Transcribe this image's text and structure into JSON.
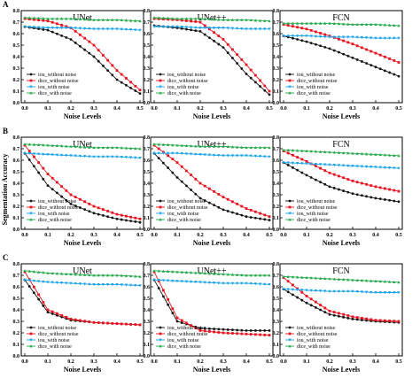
{
  "ylabel": "Segmentation Accuracy",
  "xlabel": "Noise Levels",
  "colors": {
    "iou_without_noise": "#111111",
    "dice_without_noise": "#e8131f",
    "iou_with_noise": "#1aa3e8",
    "dice_with_noise": "#24a84a"
  },
  "chart_data": [
    {
      "panel": "A",
      "charts": [
        {
          "type": "line",
          "title": "UNet",
          "x": [
            0,
            0.1,
            0.2,
            0.3,
            0.4,
            0.5
          ],
          "xticks": [
            "0.0",
            "0.1",
            "0.2",
            "0.3",
            "0.4",
            "0.5"
          ],
          "yticks": [
            "0.0",
            "0.1",
            "0.2",
            "0.3",
            "0.4",
            "0.5",
            "0.6",
            "0.7",
            "0.8"
          ],
          "ylim": [
            0,
            0.8
          ],
          "series": [
            {
              "name": "iou_without noise",
              "values": [
                0.66,
                0.63,
                0.55,
                0.4,
                0.2,
                0.08
              ]
            },
            {
              "name": "dice_without noise",
              "values": [
                0.73,
                0.71,
                0.65,
                0.5,
                0.28,
                0.11
              ]
            },
            {
              "name": "iou_with noise",
              "values": [
                0.66,
                0.65,
                0.65,
                0.64,
                0.64,
                0.63
              ]
            },
            {
              "name": "dice_with noise",
              "values": [
                0.74,
                0.73,
                0.73,
                0.72,
                0.72,
                0.71
              ]
            }
          ]
        },
        {
          "type": "line",
          "title": "UNet++",
          "x": [
            0,
            0.1,
            0.2,
            0.3,
            0.4,
            0.5
          ],
          "xticks": [
            "0.0",
            "0.1",
            "0.2",
            "0.3",
            "0.4",
            "0.5"
          ],
          "yticks": [
            "0.0",
            "0.1",
            "0.2",
            "0.3",
            "0.4",
            "0.5",
            "0.6",
            "0.7",
            "0.8"
          ],
          "ylim": [
            0,
            0.8
          ],
          "series": [
            {
              "name": "iou_without noise",
              "values": [
                0.67,
                0.65,
                0.62,
                0.48,
                0.25,
                0.07
              ]
            },
            {
              "name": "dice_without noise",
              "values": [
                0.73,
                0.72,
                0.7,
                0.55,
                0.33,
                0.1
              ]
            },
            {
              "name": "iou_with noise",
              "values": [
                0.66,
                0.66,
                0.65,
                0.65,
                0.64,
                0.64
              ]
            },
            {
              "name": "dice_with noise",
              "values": [
                0.74,
                0.73,
                0.73,
                0.72,
                0.72,
                0.71
              ]
            }
          ]
        },
        {
          "type": "line",
          "title": "FCN",
          "x": [
            0,
            0.1,
            0.2,
            0.3,
            0.4,
            0.5
          ],
          "xticks": [
            "0.0",
            "0.1",
            "0.2",
            "0.3",
            "0.4",
            "0.5"
          ],
          "yticks": [
            "0.0",
            "0.1",
            "0.2",
            "0.3",
            "0.4",
            "0.5",
            "0.6",
            "0.7",
            "0.8"
          ],
          "ylim": [
            0,
            0.8
          ],
          "series": [
            {
              "name": "iou_without noise",
              "values": [
                0.58,
                0.53,
                0.47,
                0.39,
                0.31,
                0.23
              ]
            },
            {
              "name": "dice_without noise",
              "values": [
                0.68,
                0.64,
                0.58,
                0.51,
                0.43,
                0.35
              ]
            },
            {
              "name": "iou_with noise",
              "values": [
                0.58,
                0.58,
                0.57,
                0.57,
                0.56,
                0.56
              ]
            },
            {
              "name": "dice_with noise",
              "values": [
                0.69,
                0.69,
                0.69,
                0.68,
                0.68,
                0.67
              ]
            }
          ]
        }
      ]
    },
    {
      "panel": "B",
      "charts": [
        {
          "type": "line",
          "title": "UNet",
          "x": [
            0,
            0.1,
            0.2,
            0.3,
            0.4,
            0.5
          ],
          "xticks": [
            "0.0",
            "0.1",
            "0.2",
            "0.3",
            "0.4",
            "0.5"
          ],
          "yticks": [
            "0.0",
            "0.1",
            "0.2",
            "0.3",
            "0.4",
            "0.5",
            "0.6",
            "0.7",
            "0.8"
          ],
          "ylim": [
            0,
            0.8
          ],
          "series": [
            {
              "name": "iou_without noise",
              "values": [
                0.66,
                0.38,
                0.22,
                0.14,
                0.09,
                0.06
              ]
            },
            {
              "name": "dice_without noise",
              "values": [
                0.73,
                0.48,
                0.3,
                0.2,
                0.13,
                0.09
              ]
            },
            {
              "name": "iou_with noise",
              "values": [
                0.66,
                0.65,
                0.64,
                0.63,
                0.63,
                0.62
              ]
            },
            {
              "name": "dice_with noise",
              "values": [
                0.74,
                0.73,
                0.72,
                0.71,
                0.71,
                0.7
              ]
            }
          ]
        },
        {
          "type": "line",
          "title": "UNet++",
          "x": [
            0,
            0.1,
            0.2,
            0.3,
            0.4,
            0.5
          ],
          "xticks": [
            "0.0",
            "0.1",
            "0.2",
            "0.3",
            "0.4",
            "0.5"
          ],
          "yticks": [
            "0.0",
            "0.1",
            "0.2",
            "0.3",
            "0.4",
            "0.5",
            "0.6",
            "0.7",
            "0.8"
          ],
          "ylim": [
            0,
            0.8
          ],
          "series": [
            {
              "name": "iou_without noise",
              "values": [
                0.66,
                0.45,
                0.27,
                0.17,
                0.11,
                0.08
              ]
            },
            {
              "name": "dice_without noise",
              "values": [
                0.73,
                0.58,
                0.4,
                0.28,
                0.18,
                0.11
              ]
            },
            {
              "name": "iou_with noise",
              "values": [
                0.66,
                0.66,
                0.65,
                0.64,
                0.64,
                0.63
              ]
            },
            {
              "name": "dice_with noise",
              "values": [
                0.74,
                0.73,
                0.72,
                0.72,
                0.71,
                0.71
              ]
            }
          ]
        },
        {
          "type": "line",
          "title": "FCN",
          "x": [
            0,
            0.1,
            0.2,
            0.3,
            0.4,
            0.5
          ],
          "xticks": [
            "0.0",
            "0.1",
            "0.2",
            "0.3",
            "0.4",
            "0.5"
          ],
          "yticks": [
            "0.0",
            "0.1",
            "0.2",
            "0.3",
            "0.4",
            "0.5",
            "0.6",
            "0.7",
            "0.8"
          ],
          "ylim": [
            0,
            0.8
          ],
          "series": [
            {
              "name": "iou_without noise",
              "values": [
                0.58,
                0.47,
                0.37,
                0.31,
                0.27,
                0.24
              ]
            },
            {
              "name": "dice_without noise",
              "values": [
                0.68,
                0.59,
                0.49,
                0.42,
                0.37,
                0.33
              ]
            },
            {
              "name": "iou_with noise",
              "values": [
                0.58,
                0.57,
                0.56,
                0.55,
                0.54,
                0.53
              ]
            },
            {
              "name": "dice_with noise",
              "values": [
                0.69,
                0.68,
                0.67,
                0.66,
                0.65,
                0.64
              ]
            }
          ]
        }
      ]
    },
    {
      "panel": "C",
      "charts": [
        {
          "type": "line",
          "title": "UNet",
          "x": [
            0,
            0.1,
            0.2,
            0.3,
            0.4,
            0.5
          ],
          "xticks": [
            "0.0",
            "0.1",
            "0.2",
            "0.3",
            "0.4",
            "0.5"
          ],
          "yticks": [
            "0.0",
            "0.1",
            "0.2",
            "0.3",
            "0.4",
            "0.5",
            "0.6",
            "0.7",
            "0.8"
          ],
          "ylim": [
            0,
            0.8
          ],
          "series": [
            {
              "name": "iou_without noise",
              "values": [
                0.66,
                0.38,
                0.31,
                0.29,
                0.28,
                0.27
              ]
            },
            {
              "name": "dice_without noise",
              "values": [
                0.73,
                0.4,
                0.32,
                0.29,
                0.28,
                0.27
              ]
            },
            {
              "name": "iou_with noise",
              "values": [
                0.66,
                0.64,
                0.63,
                0.62,
                0.62,
                0.61
              ]
            },
            {
              "name": "dice_with noise",
              "values": [
                0.74,
                0.72,
                0.71,
                0.7,
                0.7,
                0.69
              ]
            }
          ]
        },
        {
          "type": "line",
          "title": "UNet++",
          "x": [
            0,
            0.1,
            0.2,
            0.3,
            0.4,
            0.5
          ],
          "xticks": [
            "0.0",
            "0.1",
            "0.2",
            "0.3",
            "0.4",
            "0.5"
          ],
          "yticks": [
            "0.0",
            "0.1",
            "0.2",
            "0.3",
            "0.4",
            "0.5",
            "0.6",
            "0.7",
            "0.8"
          ],
          "ylim": [
            0,
            0.8
          ],
          "series": [
            {
              "name": "iou_without noise",
              "values": [
                0.66,
                0.3,
                0.24,
                0.23,
                0.22,
                0.22
              ]
            },
            {
              "name": "dice_without noise",
              "values": [
                0.73,
                0.33,
                0.22,
                0.2,
                0.19,
                0.18
              ]
            },
            {
              "name": "iou_with noise",
              "values": [
                0.66,
                0.65,
                0.64,
                0.63,
                0.63,
                0.62
              ]
            },
            {
              "name": "dice_with noise",
              "values": [
                0.74,
                0.73,
                0.72,
                0.71,
                0.7,
                0.7
              ]
            }
          ]
        },
        {
          "type": "line",
          "title": "FCN",
          "x": [
            0,
            0.1,
            0.2,
            0.3,
            0.4,
            0.5
          ],
          "xticks": [
            "0.0",
            "0.1",
            "0.2",
            "0.3",
            "0.4",
            "0.5"
          ],
          "yticks": [
            "0.0",
            "0.1",
            "0.2",
            "0.3",
            "0.4",
            "0.5",
            "0.6",
            "0.7",
            "0.8"
          ],
          "ylim": [
            0,
            0.8
          ],
          "series": [
            {
              "name": "iou_without noise",
              "values": [
                0.58,
                0.46,
                0.36,
                0.32,
                0.3,
                0.29
              ]
            },
            {
              "name": "dice_without noise",
              "values": [
                0.68,
                0.52,
                0.39,
                0.34,
                0.31,
                0.3
              ]
            },
            {
              "name": "iou_with noise",
              "values": [
                0.58,
                0.57,
                0.56,
                0.56,
                0.55,
                0.55
              ]
            },
            {
              "name": "dice_with noise",
              "values": [
                0.69,
                0.68,
                0.67,
                0.66,
                0.65,
                0.64
              ]
            }
          ]
        }
      ]
    }
  ]
}
